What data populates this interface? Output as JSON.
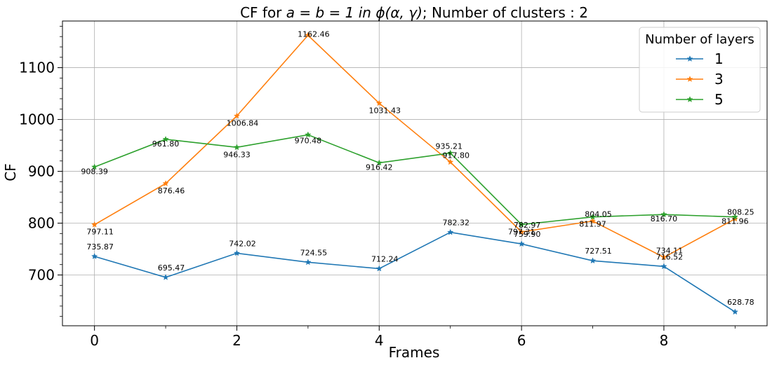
{
  "chart_data": {
    "type": "line",
    "title_prefix": "CF for ",
    "title_math": "a = b = 1 in ϕ(α, γ)",
    "title_suffix": "; Number of clusters : 2",
    "xlabel": "Frames",
    "ylabel": "CF",
    "x": [
      0,
      1,
      2,
      3,
      4,
      5,
      6,
      7,
      8,
      9
    ],
    "xlim": [
      -0.45,
      9.45
    ],
    "ylim": [
      602,
      1190
    ],
    "xticks": [
      0,
      2,
      4,
      6,
      8
    ],
    "xtick_labels": [
      "0",
      "2",
      "4",
      "6",
      "8"
    ],
    "yticks": [
      700,
      800,
      900,
      1000,
      1100
    ],
    "ytick_labels": [
      "700",
      "800",
      "900",
      "1000",
      "1100"
    ],
    "grid": true,
    "legend_title": "Number of layers",
    "legend_position": "top-right",
    "series": [
      {
        "name": "1",
        "color": "#1f77b4",
        "values": [
          735.87,
          695.47,
          742.02,
          724.55,
          712.24,
          782.32,
          759.9,
          727.51,
          716.52,
          628.78
        ],
        "labels": [
          "735.87",
          "695.47",
          "742.02",
          "724.55",
          "712.24",
          "782.32",
          "759.90",
          "727.51",
          "716.52",
          "628.78"
        ]
      },
      {
        "name": "3",
        "color": "#ff7f0e",
        "values": [
          797.11,
          876.46,
          1006.84,
          1162.46,
          1031.43,
          917.8,
          782.97,
          804.05,
          734.11,
          808.25
        ],
        "labels": [
          "797.11",
          "876.46",
          "1006.84",
          "1162.46",
          "1031.43",
          "917.80",
          "782.97",
          "804.05",
          "734.11",
          "808.25"
        ]
      },
      {
        "name": "5",
        "color": "#2ca02c",
        "values": [
          908.39,
          961.8,
          946.33,
          970.48,
          916.42,
          935.21,
          797.31,
          811.97,
          816.7,
          811.96
        ],
        "labels": [
          "908.39",
          "961.80",
          "946.33",
          "970.48",
          "916.42",
          "935.21",
          "797.31",
          "811.97",
          "816.70",
          "811.96"
        ]
      }
    ]
  }
}
